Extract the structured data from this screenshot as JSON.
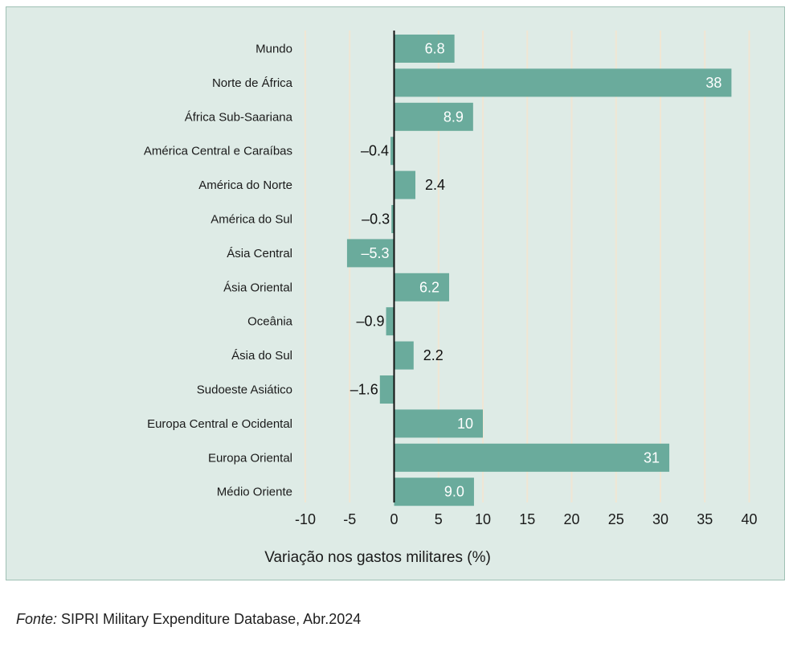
{
  "chart_data": {
    "type": "bar",
    "orientation": "horizontal",
    "categories": [
      "Mundo",
      "Norte de África",
      "África Sub-Saariana",
      "América Central e Caraíbas",
      "América do Norte",
      "América do Sul",
      "Ásia Central",
      "Ásia Oriental",
      "Oceânia",
      "Ásia do Sul",
      "Sudoeste Asiático",
      "Europa Central e Ocidental",
      "Europa Oriental",
      "Médio Oriente"
    ],
    "values": [
      6.8,
      38,
      8.9,
      -0.4,
      2.4,
      -0.3,
      -5.3,
      6.2,
      -0.9,
      2.2,
      -1.6,
      10,
      31,
      9.0
    ],
    "value_labels": [
      "6.8",
      "38",
      "8.9",
      "–0.4",
      "2.4",
      "–0.3",
      "–5.3",
      "6.2",
      "–0.9",
      "2.2",
      "–1.6",
      "10",
      "31",
      "9.0"
    ],
    "xlabel": "Variação nos gastos militares (%)",
    "ylabel": "",
    "xlim": [
      -10,
      40
    ],
    "xticks": [
      -10,
      -5,
      0,
      5,
      10,
      15,
      20,
      25,
      30,
      35,
      40
    ],
    "xtick_labels": [
      "-10",
      "-5",
      "0",
      "5",
      "10",
      "15",
      "20",
      "25",
      "30",
      "35",
      "40"
    ],
    "grid": true,
    "colors": {
      "bar": "#6aab9c",
      "background": "#deebe6",
      "grid": "#f0e6d4",
      "zero_line": "#111111"
    }
  },
  "source": {
    "prefix": "Fonte:",
    "text": " SIPRI Military Expenditure Database, Abr.2024"
  }
}
